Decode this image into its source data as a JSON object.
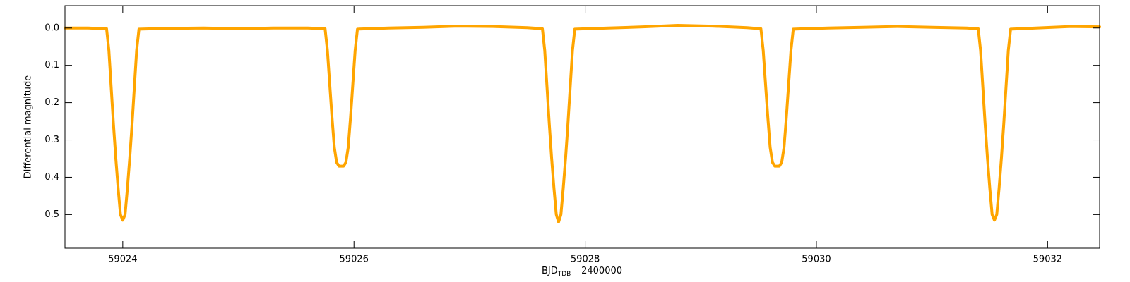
{
  "chart_data": {
    "type": "line",
    "y_label": "Differential magnitude",
    "x_label": {
      "main": "BJD",
      "sub": "TDB",
      "rest": " – 2400000"
    },
    "color": "#ffa500",
    "xlim": [
      59023.5,
      59032.45
    ],
    "xticks": [
      59024,
      59026,
      59028,
      59030,
      59032
    ],
    "ylim": [
      -0.06,
      0.59
    ],
    "invert_y": true,
    "yticks": [
      {
        "value": 0,
        "label": "0.0"
      },
      0.1,
      0.2,
      0.3,
      0.4,
      0.5
    ],
    "x": [
      59023.5,
      59023.7,
      59023.86,
      59023.88,
      59023.9,
      59023.92,
      59023.94,
      59023.96,
      59023.98,
      59024.0,
      59024.02,
      59024.04,
      59024.06,
      59024.08,
      59024.1,
      59024.12,
      59024.14,
      59024.4,
      59024.7,
      59025.0,
      59025.3,
      59025.6,
      59025.75,
      59025.77,
      59025.79,
      59025.81,
      59025.83,
      59025.85,
      59025.87,
      59025.89,
      59025.91,
      59025.93,
      59025.95,
      59025.97,
      59025.99,
      59026.01,
      59026.03,
      59026.3,
      59026.6,
      59026.9,
      59027.2,
      59027.5,
      59027.63,
      59027.65,
      59027.67,
      59027.69,
      59027.71,
      59027.73,
      59027.75,
      59027.77,
      59027.79,
      59027.81,
      59027.83,
      59027.85,
      59027.87,
      59027.89,
      59027.91,
      59028.2,
      59028.5,
      59028.8,
      59029.1,
      59029.4,
      59029.52,
      59029.54,
      59029.56,
      59029.58,
      59029.6,
      59029.62,
      59029.64,
      59029.66,
      59029.68,
      59029.7,
      59029.72,
      59029.74,
      59029.76,
      59029.78,
      59029.8,
      59030.1,
      59030.4,
      59030.7,
      59031.0,
      59031.3,
      59031.4,
      59031.42,
      59031.44,
      59031.46,
      59031.48,
      59031.5,
      59031.52,
      59031.54,
      59031.56,
      59031.58,
      59031.6,
      59031.62,
      59031.64,
      59031.66,
      59031.68,
      59031.9,
      59032.2,
      59032.45
    ],
    "values": [
      0.0,
      0.0,
      0.002,
      0.06,
      0.16,
      0.26,
      0.35,
      0.43,
      0.5,
      0.515,
      0.5,
      0.43,
      0.35,
      0.26,
      0.16,
      0.06,
      0.003,
      0.001,
      0.0,
      0.002,
      0.0,
      0.0,
      0.002,
      0.06,
      0.15,
      0.24,
      0.32,
      0.36,
      0.37,
      0.37,
      0.37,
      0.36,
      0.32,
      0.24,
      0.15,
      0.06,
      0.003,
      0.0,
      -0.002,
      -0.005,
      -0.004,
      -0.001,
      0.002,
      0.06,
      0.16,
      0.26,
      0.35,
      0.43,
      0.5,
      0.52,
      0.5,
      0.43,
      0.35,
      0.26,
      0.16,
      0.06,
      0.003,
      0.0,
      -0.003,
      -0.007,
      -0.005,
      -0.001,
      0.002,
      0.06,
      0.15,
      0.24,
      0.32,
      0.36,
      0.37,
      0.37,
      0.37,
      0.36,
      0.32,
      0.24,
      0.15,
      0.06,
      0.003,
      0.0,
      -0.002,
      -0.004,
      -0.002,
      0.0,
      0.002,
      0.06,
      0.16,
      0.26,
      0.35,
      0.43,
      0.5,
      0.515,
      0.5,
      0.43,
      0.35,
      0.26,
      0.16,
      0.06,
      0.003,
      0.0,
      -0.004,
      -0.003
    ]
  }
}
